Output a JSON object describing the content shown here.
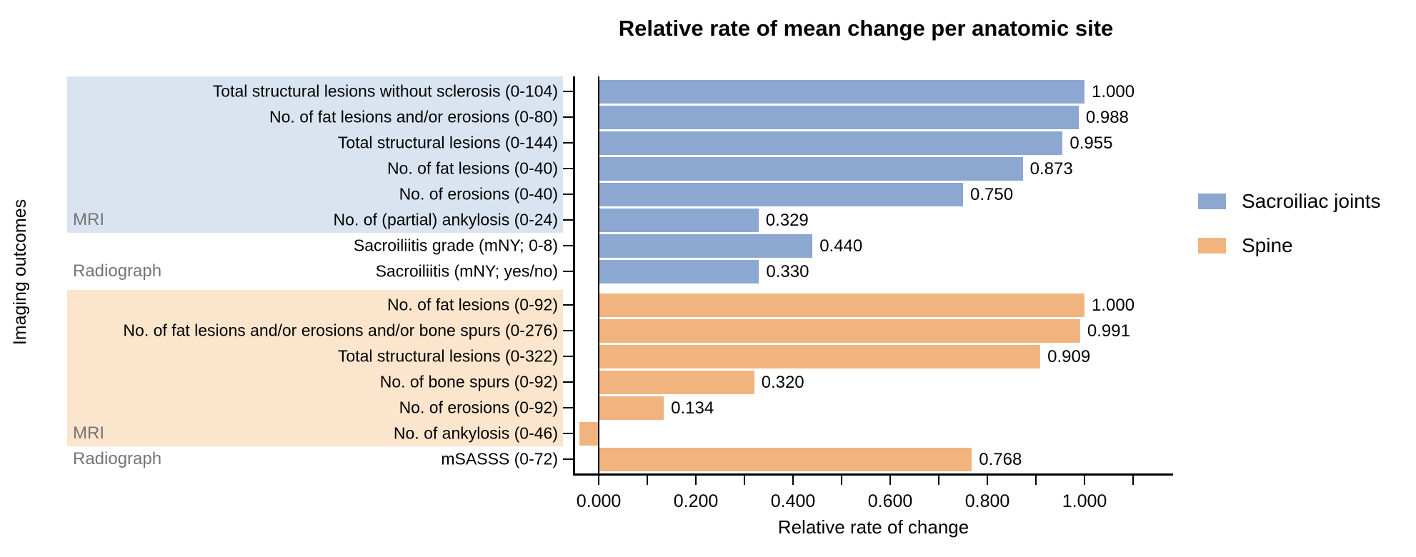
{
  "title": "Relative rate of mean change per anatomic site",
  "y_axis_title": "Imaging outcomes",
  "x_axis_title": "Relative rate of change",
  "legend": [
    {
      "label": "Sacroiliac joints",
      "color": "#8DA8D0"
    },
    {
      "label": "Spine",
      "color": "#F2B47E"
    }
  ],
  "chart_data": {
    "type": "bar",
    "orientation": "horizontal",
    "title": "Relative rate of mean change per anatomic site",
    "xlabel": "Relative rate of change",
    "ylabel": "Imaging outcomes",
    "xlim": [
      -0.052,
      1.18
    ],
    "x_tick_labels": [
      "0.000",
      "0.200",
      "0.400",
      "0.600",
      "0.800",
      "1.000"
    ],
    "x_tick_values": [
      0.0,
      0.2,
      0.4,
      0.6,
      0.8,
      1.0
    ],
    "minor_tick_step": 0.1,
    "grid": false,
    "legend_position": "right",
    "groups": [
      {
        "name": "Sacroiliac joints",
        "bar_color": "#8DA8D0",
        "sections": [
          {
            "modality": "MRI",
            "band_color": "#DAE4F1",
            "rows": [
              {
                "label": "Total structural lesions without sclerosis (0-104)",
                "value": 1.0,
                "value_label": "1.000"
              },
              {
                "label": "No. of fat lesions and/or erosions (0-80)",
                "value": 0.988,
                "value_label": "0.988"
              },
              {
                "label": "Total structural lesions (0-144)",
                "value": 0.955,
                "value_label": "0.955"
              },
              {
                "label": "No. of fat lesions (0-40)",
                "value": 0.873,
                "value_label": "0.873"
              },
              {
                "label": "No. of erosions (0-40)",
                "value": 0.75,
                "value_label": "0.750"
              },
              {
                "label": "No. of (partial) ankylosis (0-24)",
                "value": 0.329,
                "value_label": "0.329"
              }
            ]
          },
          {
            "modality": "Radiograph",
            "band_color": "#F2F2F2",
            "rows": [
              {
                "label": "Sacroiliitis grade (mNY; 0-8)",
                "value": 0.44,
                "value_label": "0.440"
              },
              {
                "label": "Sacroiliitis (mNY; yes/no)",
                "value": 0.33,
                "value_label": "0.330"
              }
            ]
          }
        ]
      },
      {
        "name": "Spine",
        "bar_color": "#F2B47E",
        "sections": [
          {
            "modality": "MRI",
            "band_color": "#FBE5CC",
            "rows": [
              {
                "label": "No. of fat lesions (0-92)",
                "value": 1.0,
                "value_label": "1.000"
              },
              {
                "label": "No. of fat lesions and/or erosions and/or bone spurs (0-276)",
                "value": 0.991,
                "value_label": "0.991"
              },
              {
                "label": "Total structural lesions (0-322)",
                "value": 0.909,
                "value_label": "0.909"
              },
              {
                "label": "No. of bone spurs (0-92)",
                "value": 0.32,
                "value_label": "0.320"
              },
              {
                "label": "No. of erosions (0-92)",
                "value": 0.134,
                "value_label": "0.134"
              },
              {
                "label": "No. of ankylosis (0-46)",
                "value": -0.04,
                "value_label": ""
              }
            ]
          },
          {
            "modality": "Radiograph",
            "band_color": "#FDF4E9",
            "rows": [
              {
                "label": "mSASSS (0-72)",
                "value": 0.768,
                "value_label": "0.768"
              }
            ]
          }
        ]
      }
    ]
  },
  "colors": {
    "axis": "#000000",
    "modality_text": "#757575",
    "sacroiliac_bar": "#8DA8D0",
    "spine_bar": "#F2B47E",
    "sacroiliac_mri_band": "#DAE4F1",
    "sacroiliac_radiograph_band": "#F2F2F2",
    "spine_mri_band": "#FBE5CC",
    "spine_radiograph_band": "#FDF4E9"
  }
}
